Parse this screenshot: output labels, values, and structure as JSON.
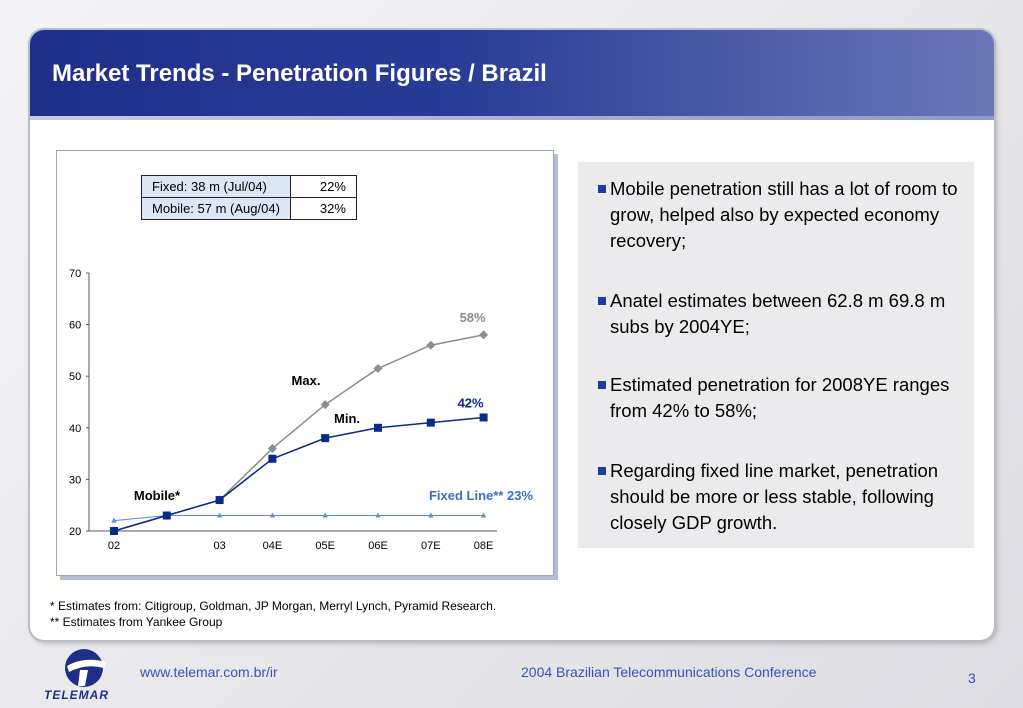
{
  "title": "Market Trends - Penetration Figures / Brazil",
  "table": {
    "rows": [
      {
        "label": "Fixed:   38 m (Jul/04)",
        "value": "22%"
      },
      {
        "label": "Mobile: 57 m (Aug/04)",
        "value": "32%"
      }
    ]
  },
  "chart_data": {
    "type": "line",
    "categories": [
      "02",
      "",
      "03",
      "04E",
      "05E",
      "06E",
      "07E",
      "08E"
    ],
    "ylim": [
      20,
      70
    ],
    "yticks": [
      20,
      30,
      40,
      50,
      60,
      70
    ],
    "grid": false,
    "series": [
      {
        "name": "Max.",
        "color": "#8c8c8c",
        "marker": "diamond",
        "values": [
          20,
          23,
          26,
          36,
          44.5,
          51.5,
          56,
          58
        ]
      },
      {
        "name": "Min.",
        "color": "#0a2a8a",
        "marker": "square",
        "values": [
          20,
          23,
          26,
          34,
          38,
          40,
          41,
          42
        ]
      },
      {
        "name": "Fixed Line** 23%",
        "color": "#5b8ed6",
        "marker": "triangle",
        "values": [
          22,
          23,
          23,
          23,
          23,
          23,
          23,
          23
        ]
      }
    ],
    "annotations": [
      {
        "text": "58%",
        "color": "#8c8c8c"
      },
      {
        "text": "42%",
        "color": "#0a2a8a"
      },
      {
        "text": "Max.",
        "color": "#000000"
      },
      {
        "text": "Min.",
        "color": "#000000"
      },
      {
        "text": "Mobile*",
        "color": "#000000"
      },
      {
        "text": "Fixed Line** 23%",
        "color": "#3a6fc8"
      }
    ]
  },
  "bullets": [
    "Mobile penetration still has a lot of room to grow, helped also by expected economy recovery;",
    " Anatel estimates between 62.8 m 69.8 m subs by 2004YE;",
    "Estimated penetration for 2008YE ranges from 42% to 58%;",
    "Regarding fixed line market, penetration should be more or less stable, following closely GDP growth."
  ],
  "footnotes": [
    "* Estimates from: Citigroup, Goldman, JP Morgan, Merryl Lynch, Pyramid Research.",
    "** Estimates from Yankee Group"
  ],
  "footer": {
    "url": "www.telemar.com.br/ir",
    "conference": "2004 Brazilian Telecommunications  Conference",
    "page": "3",
    "logo_text": "TELEMAR"
  },
  "colors": {
    "title_bar": "#1e2f8a",
    "accent_blue": "#3a52b8",
    "bullet_square": "#1a3ea0"
  }
}
